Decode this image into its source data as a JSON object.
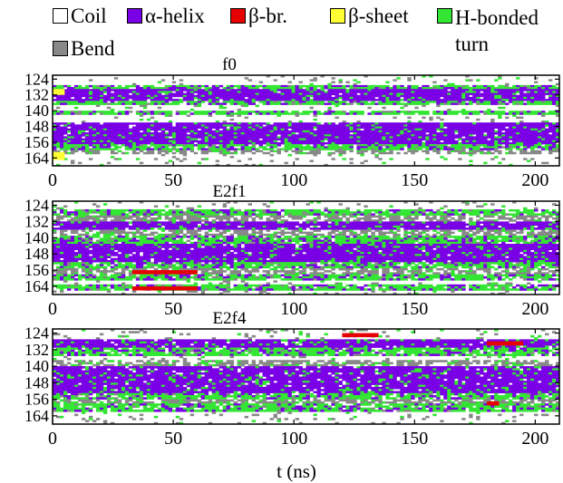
{
  "legend": {
    "items": [
      {
        "label": "Coil",
        "color": "#ffffff"
      },
      {
        "label": "α-helix",
        "color": "#7a00e6"
      },
      {
        "label": "β-br.",
        "color": "#e60000"
      },
      {
        "label": "β-sheet",
        "color": "#ffff33"
      },
      {
        "label": "H-bonded turn",
        "color": "#33e633"
      },
      {
        "label": "Bend",
        "color": "#888888"
      }
    ]
  },
  "chart_data": [
    {
      "type": "heatmap",
      "title": "f0",
      "xlabel": "",
      "ylabel": "",
      "xlim": [
        0,
        210
      ],
      "ylim": [
        122,
        168
      ],
      "x_ticks": [
        0,
        50,
        100,
        150,
        200
      ],
      "y_ticks": [
        124,
        132,
        140,
        148,
        156,
        164
      ],
      "states": [
        "Coil",
        "α-helix",
        "β-br.",
        "β-sheet",
        "H-bonded turn",
        "Bend"
      ],
      "residue_segments": [
        {
          "from": 122,
          "to": 126,
          "state": "Coil"
        },
        {
          "from": 127,
          "to": 128,
          "state": "H-bonded turn"
        },
        {
          "from": 129,
          "to": 134,
          "state": "α-helix"
        },
        {
          "from": 135,
          "to": 136,
          "state": "H-bonded turn"
        },
        {
          "from": 137,
          "to": 139,
          "state": "Coil"
        },
        {
          "from": 140,
          "to": 141,
          "state": "H-bonded turn"
        },
        {
          "from": 142,
          "to": 145,
          "state": "Coil"
        },
        {
          "from": 146,
          "to": 156,
          "state": "α-helix"
        },
        {
          "from": 157,
          "to": 159,
          "state": "H-bonded turn"
        },
        {
          "from": 160,
          "to": 161,
          "state": "Bend"
        },
        {
          "from": 162,
          "to": 168,
          "state": "Coil"
        }
      ],
      "events": [
        {
          "x_from": 0,
          "x_to": 5,
          "residue_from": 129,
          "residue_to": 131,
          "state": "β-sheet"
        },
        {
          "x_from": 0,
          "x_to": 5,
          "residue_from": 161,
          "residue_to": 164,
          "state": "β-sheet"
        }
      ]
    },
    {
      "type": "heatmap",
      "title": "E2f1",
      "xlabel": "",
      "ylabel": "",
      "xlim": [
        0,
        210
      ],
      "ylim": [
        122,
        168
      ],
      "x_ticks": [
        0,
        50,
        100,
        150,
        200
      ],
      "y_ticks": [
        124,
        132,
        140,
        148,
        156,
        164
      ],
      "states": [
        "Coil",
        "α-helix",
        "β-br.",
        "β-sheet",
        "H-bonded turn",
        "Bend"
      ],
      "residue_segments": [
        {
          "from": 122,
          "to": 125,
          "state": "Coil"
        },
        {
          "from": 126,
          "to": 128,
          "state": "H-bonded turn"
        },
        {
          "from": 129,
          "to": 131,
          "state": "Bend"
        },
        {
          "from": 132,
          "to": 135,
          "state": "α-helix"
        },
        {
          "from": 136,
          "to": 138,
          "state": "Bend"
        },
        {
          "from": 139,
          "to": 142,
          "state": "H-bonded turn"
        },
        {
          "from": 143,
          "to": 151,
          "state": "α-helix"
        },
        {
          "from": 152,
          "to": 154,
          "state": "H-bonded turn"
        },
        {
          "from": 155,
          "to": 157,
          "state": "Bend"
        },
        {
          "from": 158,
          "to": 160,
          "state": "H-bonded turn"
        },
        {
          "from": 161,
          "to": 162,
          "state": "Coil"
        },
        {
          "from": 163,
          "to": 165,
          "state": "H-bonded turn"
        },
        {
          "from": 166,
          "to": 168,
          "state": "Coil"
        }
      ],
      "events": [
        {
          "x_from": 33,
          "x_to": 60,
          "residue_from": 156,
          "residue_to": 157,
          "state": "β-br."
        },
        {
          "x_from": 33,
          "x_to": 60,
          "residue_from": 164,
          "residue_to": 165,
          "state": "β-br."
        }
      ]
    },
    {
      "type": "heatmap",
      "title": "E2f4",
      "xlabel": "t (ns)",
      "ylabel": "",
      "xlim": [
        0,
        210
      ],
      "ylim": [
        122,
        168
      ],
      "x_ticks": [
        0,
        50,
        100,
        150,
        200
      ],
      "y_ticks": [
        124,
        132,
        140,
        148,
        156,
        164
      ],
      "states": [
        "Coil",
        "α-helix",
        "β-br.",
        "β-sheet",
        "H-bonded turn",
        "Bend"
      ],
      "residue_segments": [
        {
          "from": 122,
          "to": 126,
          "state": "Coil"
        },
        {
          "from": 127,
          "to": 130,
          "state": "α-helix"
        },
        {
          "from": 131,
          "to": 134,
          "state": "H-bonded turn"
        },
        {
          "from": 135,
          "to": 136,
          "state": "Coil"
        },
        {
          "from": 137,
          "to": 139,
          "state": "Bend"
        },
        {
          "from": 140,
          "to": 152,
          "state": "α-helix"
        },
        {
          "from": 153,
          "to": 155,
          "state": "H-bonded turn"
        },
        {
          "from": 156,
          "to": 157,
          "state": "Bend"
        },
        {
          "from": 158,
          "to": 161,
          "state": "H-bonded turn"
        },
        {
          "from": 162,
          "to": 168,
          "state": "Coil"
        }
      ],
      "events": [
        {
          "x_from": 180,
          "x_to": 195,
          "residue_from": 128,
          "residue_to": 129,
          "state": "β-br."
        },
        {
          "x_from": 180,
          "x_to": 185,
          "residue_from": 157,
          "residue_to": 158,
          "state": "β-br."
        },
        {
          "x_from": 120,
          "x_to": 135,
          "residue_from": 124,
          "residue_to": 125,
          "state": "β-br."
        }
      ]
    }
  ]
}
